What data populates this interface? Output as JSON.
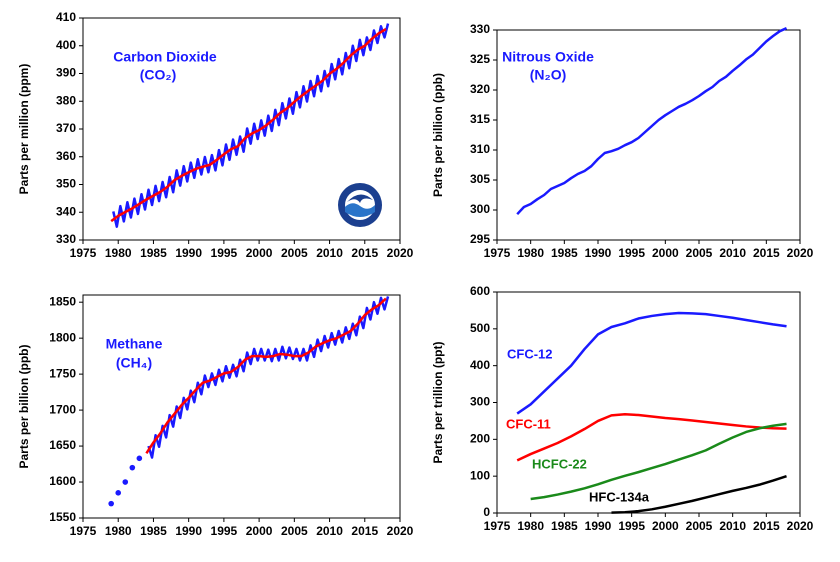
{
  "chart_data": [
    {
      "type": "line",
      "annotations": [
        "Carbon Dioxide",
        "(CO₂)"
      ],
      "y_label": "Parts per million (ppm)",
      "xlim": [
        1975,
        2020
      ],
      "xticks": [
        1975,
        1980,
        1985,
        1990,
        1995,
        2000,
        2005,
        2010,
        2015,
        2020
      ],
      "ylim": [
        330,
        410
      ],
      "yticks": [
        330,
        340,
        350,
        360,
        370,
        380,
        390,
        400,
        410
      ],
      "series": [
        {
          "color": "#1a1aff",
          "mode": "lines",
          "x": [
            1979.3,
            1979.8,
            1980.3,
            1980.8,
            1981.3,
            1981.8,
            1982.3,
            1982.8,
            1983.3,
            1983.8,
            1984.3,
            1984.8,
            1985.3,
            1985.8,
            1986.3,
            1986.8,
            1987.3,
            1987.8,
            1988.3,
            1988.8,
            1989.3,
            1989.8,
            1990.3,
            1990.8,
            1991.3,
            1991.8,
            1992.3,
            1992.8,
            1993.3,
            1993.8,
            1994.3,
            1994.8,
            1995.3,
            1995.8,
            1996.3,
            1996.8,
            1997.3,
            1997.8,
            1998.3,
            1998.8,
            1999.3,
            1999.8,
            2000.3,
            2000.8,
            2001.3,
            2001.8,
            2002.3,
            2002.8,
            2003.3,
            2003.8,
            2004.3,
            2004.8,
            2005.3,
            2005.8,
            2006.3,
            2006.8,
            2007.3,
            2007.8,
            2008.3,
            2008.8,
            2009.3,
            2009.8,
            2010.3,
            2010.8,
            2011.3,
            2011.8,
            2012.3,
            2012.8,
            2013.3,
            2013.8,
            2014.3,
            2014.8,
            2015.3,
            2015.8,
            2016.3,
            2016.8,
            2017.3,
            2017.8,
            2018.3
          ],
          "values": [
            340.3,
            334.8,
            342.2,
            336.7,
            343.6,
            338.1,
            344.9,
            339.4,
            346.5,
            341.0,
            348.1,
            342.6,
            349.5,
            344.0,
            350.9,
            345.4,
            352.7,
            347.2,
            355.1,
            349.6,
            356.6,
            351.1,
            357.9,
            352.4,
            359.1,
            353.6,
            359.9,
            354.4,
            360.6,
            355.1,
            362.4,
            356.9,
            364.4,
            358.9,
            366.2,
            360.7,
            367.3,
            361.8,
            370.2,
            364.7,
            371.9,
            366.4,
            373.1,
            367.6,
            374.8,
            369.3,
            376.9,
            371.4,
            379.3,
            373.8,
            381.0,
            375.5,
            383.3,
            377.8,
            385.4,
            379.9,
            387.3,
            381.8,
            389.1,
            383.6,
            390.9,
            385.4,
            393.4,
            387.9,
            395.2,
            389.7,
            397.4,
            391.9,
            400.0,
            394.5,
            402.1,
            396.6,
            403.0,
            398.5,
            405.5,
            401.0,
            407.0,
            403.0,
            408.0
          ]
        },
        {
          "color": "#ff0000",
          "mode": "lines",
          "x": [
            1979,
            1980,
            1981,
            1982,
            1983,
            1984,
            1985,
            1986,
            1987,
            1988,
            1989,
            1990,
            1991,
            1992,
            1993,
            1994,
            1995,
            1996,
            1997,
            1998,
            1999,
            2000,
            2001,
            2002,
            2003,
            2004,
            2005,
            2006,
            2007,
            2008,
            2009,
            2010,
            2011,
            2012,
            2013,
            2014,
            2015,
            2016,
            2017,
            2018
          ],
          "values": [
            336.8,
            338.7,
            340.1,
            341.4,
            343.0,
            344.6,
            346.0,
            347.4,
            349.2,
            351.6,
            353.1,
            354.4,
            355.6,
            356.4,
            357.1,
            358.9,
            360.9,
            362.7,
            363.8,
            366.7,
            368.4,
            369.6,
            371.3,
            373.4,
            375.8,
            377.5,
            379.8,
            381.9,
            383.8,
            385.6,
            387.4,
            389.9,
            391.7,
            393.9,
            396.5,
            398.6,
            400.0,
            402.5,
            404.5,
            406.0
          ]
        }
      ]
    },
    {
      "type": "line",
      "annotations": [
        "Nitrous Oxide",
        "(N₂O)"
      ],
      "y_label": "Parts per billion (ppb)",
      "xlim": [
        1975,
        2020
      ],
      "xticks": [
        1975,
        1980,
        1985,
        1990,
        1995,
        2000,
        2005,
        2010,
        2015,
        2020
      ],
      "ylim": [
        295,
        330
      ],
      "yticks": [
        295,
        300,
        305,
        310,
        315,
        320,
        325,
        330
      ],
      "series": [
        {
          "color": "#1a1aff",
          "mode": "lines",
          "x": [
            1978,
            1979,
            1980,
            1981,
            1982,
            1983,
            1984,
            1985,
            1986,
            1987,
            1988,
            1989,
            1990,
            1991,
            1992,
            1993,
            1994,
            1995,
            1996,
            1997,
            1998,
            1999,
            2000,
            2001,
            2002,
            2003,
            2004,
            2005,
            2006,
            2007,
            2008,
            2009,
            2010,
            2011,
            2012,
            2013,
            2014,
            2015,
            2016,
            2017,
            2018
          ],
          "values": [
            299.3,
            300.5,
            301.0,
            301.8,
            302.5,
            303.5,
            304.0,
            304.5,
            305.3,
            306.0,
            306.5,
            307.3,
            308.5,
            309.5,
            309.8,
            310.2,
            310.8,
            311.3,
            312.0,
            313.0,
            314.0,
            315.0,
            315.8,
            316.5,
            317.2,
            317.7,
            318.3,
            319.0,
            319.8,
            320.5,
            321.5,
            322.2,
            323.2,
            324.1,
            325.1,
            325.9,
            327.0,
            328.1,
            329.0,
            329.8,
            330.3
          ]
        }
      ]
    },
    {
      "type": "line",
      "annotations": [
        "Methane",
        "(CH₄)"
      ],
      "y_label": "Parts per billion (ppb)",
      "xlim": [
        1975,
        2020
      ],
      "xticks": [
        1975,
        1980,
        1985,
        1990,
        1995,
        2000,
        2005,
        2010,
        2015,
        2020
      ],
      "ylim": [
        1550,
        1860
      ],
      "yticks": [
        1550,
        1600,
        1650,
        1700,
        1750,
        1800,
        1850
      ],
      "series": [
        {
          "color": "#1a1aff",
          "mode": "markers",
          "x": [
            1979,
            1980,
            1981,
            1982,
            1983
          ],
          "values": [
            1570,
            1585,
            1600,
            1620,
            1633
          ]
        },
        {
          "color": "#1a1aff",
          "mode": "lines",
          "x": [
            1984.3,
            1984.8,
            1985.3,
            1985.8,
            1986.3,
            1986.8,
            1987.3,
            1987.8,
            1988.3,
            1988.8,
            1989.3,
            1989.8,
            1990.3,
            1990.8,
            1991.3,
            1991.8,
            1992.3,
            1992.8,
            1993.3,
            1993.8,
            1994.3,
            1994.8,
            1995.3,
            1995.8,
            1996.3,
            1996.8,
            1997.3,
            1997.8,
            1998.3,
            1998.8,
            1999.3,
            1999.8,
            2000.3,
            2000.8,
            2001.3,
            2001.8,
            2002.3,
            2002.8,
            2003.3,
            2003.8,
            2004.3,
            2004.8,
            2005.3,
            2005.8,
            2006.3,
            2006.8,
            2007.3,
            2007.8,
            2008.3,
            2008.8,
            2009.3,
            2009.8,
            2010.3,
            2010.8,
            2011.3,
            2011.8,
            2012.3,
            2012.8,
            2013.3,
            2013.8,
            2014.3,
            2014.8,
            2015.3,
            2015.8,
            2016.3,
            2016.8,
            2017.3,
            2017.8,
            2018.3
          ],
          "values": [
            1650,
            1634,
            1665,
            1649,
            1678,
            1662,
            1693,
            1677,
            1705,
            1689,
            1717,
            1701,
            1727,
            1711,
            1738,
            1722,
            1748,
            1732,
            1751,
            1735,
            1756,
            1740,
            1761,
            1745,
            1763,
            1747,
            1770,
            1754,
            1780,
            1764,
            1785,
            1769,
            1785,
            1769,
            1784,
            1768,
            1785,
            1769,
            1788,
            1772,
            1787,
            1771,
            1785,
            1769,
            1785,
            1769,
            1790,
            1774,
            1798,
            1782,
            1803,
            1787,
            1807,
            1791,
            1810,
            1794,
            1815,
            1799,
            1820,
            1804,
            1830,
            1814,
            1842,
            1826,
            1850,
            1834,
            1856,
            1840,
            1858
          ]
        },
        {
          "color": "#ff0000",
          "mode": "lines",
          "x": [
            1984,
            1985,
            1986,
            1987,
            1988,
            1989,
            1990,
            1991,
            1992,
            1993,
            1994,
            1995,
            1996,
            1997,
            1998,
            1999,
            2000,
            2001,
            2002,
            2003,
            2004,
            2005,
            2006,
            2007,
            2008,
            2009,
            2010,
            2011,
            2012,
            2013,
            2014,
            2015,
            2016,
            2017,
            2018
          ],
          "values": [
            1640,
            1655,
            1668,
            1683,
            1695,
            1707,
            1717,
            1728,
            1738,
            1741,
            1746,
            1751,
            1753,
            1760,
            1770,
            1775,
            1775,
            1774,
            1775,
            1778,
            1777,
            1775,
            1775,
            1780,
            1788,
            1793,
            1797,
            1800,
            1805,
            1810,
            1820,
            1832,
            1840,
            1846,
            1855
          ]
        }
      ]
    },
    {
      "type": "line",
      "y_label": "Parts per trillion (ppt)",
      "xlim": [
        1975,
        2020
      ],
      "xticks": [
        1975,
        1980,
        1985,
        1990,
        1995,
        2000,
        2005,
        2010,
        2015,
        2020
      ],
      "ylim": [
        0,
        600
      ],
      "yticks": [
        0,
        100,
        200,
        300,
        400,
        500,
        600
      ],
      "series": [
        {
          "name": "CFC-12",
          "color": "#1a1aff",
          "mode": "lines",
          "x": [
            1978,
            1980,
            1982,
            1984,
            1986,
            1988,
            1990,
            1992,
            1994,
            1996,
            1998,
            2000,
            2002,
            2004,
            2006,
            2008,
            2010,
            2012,
            2014,
            2016,
            2018
          ],
          "values": [
            270,
            295,
            330,
            365,
            400,
            445,
            485,
            505,
            515,
            528,
            535,
            540,
            543,
            542,
            540,
            535,
            530,
            524,
            518,
            512,
            507
          ]
        },
        {
          "name": "CFC-11",
          "color": "#ff0000",
          "mode": "lines",
          "x": [
            1978,
            1980,
            1982,
            1984,
            1986,
            1988,
            1990,
            1992,
            1994,
            1996,
            1998,
            2000,
            2002,
            2004,
            2006,
            2008,
            2010,
            2012,
            2014,
            2016,
            2018
          ],
          "values": [
            143,
            160,
            175,
            190,
            208,
            228,
            250,
            265,
            268,
            266,
            262,
            258,
            255,
            251,
            247,
            243,
            239,
            235,
            232,
            230,
            229
          ]
        },
        {
          "name": "HCFC-22",
          "color": "#1a8a1a",
          "mode": "lines",
          "x": [
            1980,
            1982,
            1984,
            1986,
            1988,
            1990,
            1992,
            1994,
            1996,
            1998,
            2000,
            2002,
            2004,
            2006,
            2008,
            2010,
            2012,
            2014,
            2016,
            2018
          ],
          "values": [
            38,
            43,
            50,
            58,
            67,
            78,
            90,
            101,
            111,
            122,
            133,
            145,
            157,
            170,
            188,
            205,
            220,
            230,
            237,
            242
          ]
        },
        {
          "name": "HFC-134a",
          "color": "#000000",
          "mode": "lines",
          "x": [
            1992,
            1994,
            1996,
            1998,
            2000,
            2002,
            2004,
            2006,
            2008,
            2010,
            2012,
            2014,
            2016,
            2018
          ],
          "values": [
            1,
            2,
            5,
            10,
            17,
            25,
            33,
            42,
            51,
            60,
            68,
            77,
            88,
            100
          ]
        }
      ]
    }
  ]
}
